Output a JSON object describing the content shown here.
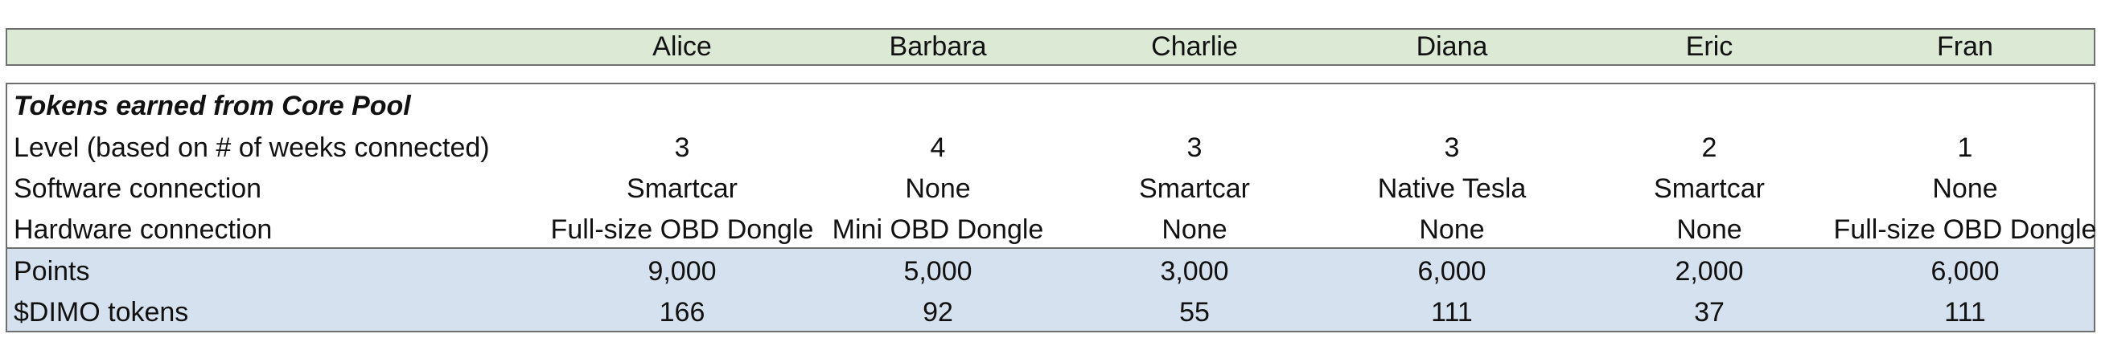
{
  "columns": [
    "Alice",
    "Barbara",
    "Charlie",
    "Diana",
    "Eric",
    "Fran"
  ],
  "section_title": "Tokens earned from Core Pool",
  "rows": [
    {
      "label": "Level (based on # of weeks connected)",
      "values": [
        "3",
        "4",
        "3",
        "3",
        "2",
        "1"
      ]
    },
    {
      "label": "Software connection",
      "values": [
        "Smartcar",
        "None",
        "Smartcar",
        "Native Tesla",
        "Smartcar",
        "None"
      ]
    },
    {
      "label": "Hardware connection",
      "values": [
        "Full-size OBD Dongle",
        "Mini OBD Dongle",
        "None",
        "None",
        "None",
        "Full-size OBD Dongle"
      ]
    },
    {
      "label": "Points",
      "values": [
        "9,000",
        "5,000",
        "3,000",
        "6,000",
        "2,000",
        "6,000"
      ]
    },
    {
      "label": "$DIMO tokens",
      "values": [
        "166",
        "92",
        "55",
        "111",
        "37",
        "111"
      ]
    }
  ],
  "colors": {
    "header_band": "#dbe9d5",
    "totals_band": "#d6e1ef",
    "border": "#6f6f6f"
  }
}
